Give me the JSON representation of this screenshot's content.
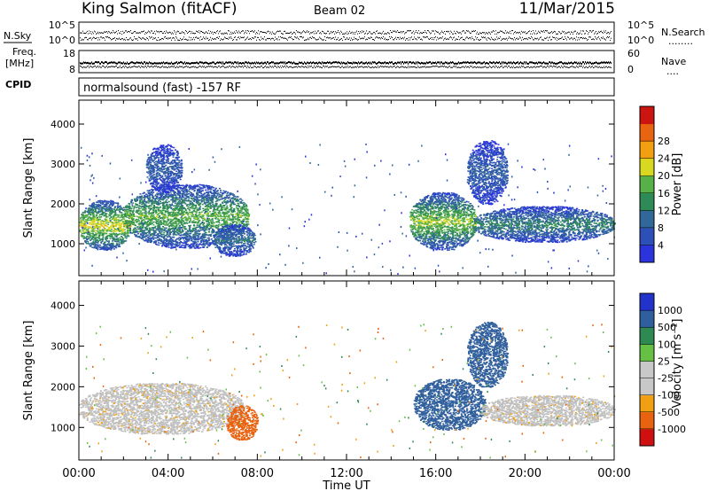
{
  "header": {
    "station": "King Salmon (fitACF)",
    "beam": "Beam 02",
    "date": "11/Mar/2015"
  },
  "strip_nsky": {
    "left_label": "N.Sky",
    "right_label": "N.Search",
    "right_label_marker": "........",
    "left_ticks": [
      "10^5",
      "10^0"
    ],
    "right_ticks": [
      "10^5",
      "10^0"
    ]
  },
  "strip_freq": {
    "left_label_line1": "Freq.",
    "left_label_line2": "[MHz]",
    "left_ticks": [
      "18",
      "8"
    ],
    "right_label": "Nave",
    "right_label_marker": "....",
    "right_ticks": [
      "60",
      "0"
    ]
  },
  "cpid": {
    "label": "CPID",
    "value": "normalsound (fast) -157 RF"
  },
  "colors": {
    "power_scale": [
      "#2a33dc",
      "#2c4fb8",
      "#32679a",
      "#2e8a56",
      "#58b048",
      "#d8d820",
      "#f2a012",
      "#e86410",
      "#cc1410"
    ],
    "velocity_scale": [
      "#2233cc",
      "#305f9d",
      "#2e8a52",
      "#66c043",
      "#c8c8c8",
      "#c8c8c8",
      "#f0a012",
      "#e8620f",
      "#d01010"
    ],
    "ground_scatter": "#c0c0c0"
  },
  "chart_data": [
    {
      "type": "heatmap",
      "panel": "power",
      "xlabel": "Time UT",
      "ylabel": "Slant Range [km]",
      "x_range_hours": [
        0,
        24
      ],
      "xlim": [
        "00:00",
        "00:00"
      ],
      "x_tick_labels": [
        "00:00",
        "04:00",
        "08:00",
        "12:00",
        "16:00",
        "20:00",
        "00:00"
      ],
      "ylim": [
        200,
        4600
      ],
      "y_ticks": [
        1000,
        2000,
        3000,
        4000
      ],
      "y_tick_labels": [
        "1000",
        "2000",
        "3000",
        "4000"
      ],
      "colorbar": {
        "label": "Power [dB]",
        "range": [
          0,
          32
        ],
        "ticks": [
          4,
          8,
          12,
          16,
          20,
          24,
          28
        ],
        "tick_labels": [
          "4",
          "8",
          "12",
          "16",
          "20",
          "24",
          "28"
        ]
      },
      "regions": [
        {
          "t": [
            0.0,
            2.3
          ],
          "r": [
            850,
            2100
          ],
          "core_r": 1150,
          "level_dB": 20
        },
        {
          "t": [
            2.0,
            7.6
          ],
          "r": [
            900,
            2500
          ],
          "core_r": 1450,
          "level_dB": 16
        },
        {
          "t": [
            3.0,
            4.6
          ],
          "r": [
            2300,
            3500
          ],
          "core_r": 2900,
          "level_dB": 8
        },
        {
          "t": [
            6.0,
            7.9
          ],
          "r": [
            700,
            1500
          ],
          "core_r": 1050,
          "level_dB": 10
        },
        {
          "t": [
            14.8,
            17.8
          ],
          "r": [
            850,
            2300
          ],
          "core_r": 1450,
          "level_dB": 18
        },
        {
          "t": [
            17.4,
            19.2
          ],
          "r": [
            2000,
            3600
          ],
          "core_r": 2800,
          "level_dB": 8
        },
        {
          "t": [
            17.6,
            24.0
          ],
          "r": [
            1050,
            1950
          ],
          "core_r": 1500,
          "level_dB": 12
        }
      ]
    },
    {
      "type": "heatmap",
      "panel": "velocity",
      "xlabel": "Time UT",
      "ylabel": "Slant Range [km]",
      "x_range_hours": [
        0,
        24
      ],
      "xlim": [
        "00:00",
        "00:00"
      ],
      "x_tick_labels": [
        "00:00",
        "04:00",
        "08:00",
        "12:00",
        "16:00",
        "20:00",
        "00:00"
      ],
      "ylim": [
        200,
        4600
      ],
      "y_ticks": [
        1000,
        2000,
        3000,
        4000
      ],
      "y_tick_labels": [
        "1000",
        "2000",
        "3000",
        "4000"
      ],
      "colorbar": {
        "label": "Velocity [m s⁻¹]",
        "tick_labels": [
          "1000",
          "500",
          "100",
          "25",
          "-25",
          "-100",
          "-500",
          "-1000"
        ]
      },
      "regions": [
        {
          "t": [
            0.0,
            7.4
          ],
          "r": [
            850,
            2100
          ],
          "velocity": "ground-scatter"
        },
        {
          "t": [
            6.6,
            8.0
          ],
          "r": [
            700,
            1550
          ],
          "velocity": -500
        },
        {
          "t": [
            15.0,
            18.2
          ],
          "r": [
            950,
            2200
          ],
          "velocity": 500
        },
        {
          "t": [
            17.4,
            19.2
          ],
          "r": [
            2000,
            3600
          ],
          "velocity": 500
        },
        {
          "t": [
            18.0,
            24.0
          ],
          "r": [
            1050,
            1800
          ],
          "velocity": "ground-scatter"
        }
      ]
    }
  ]
}
